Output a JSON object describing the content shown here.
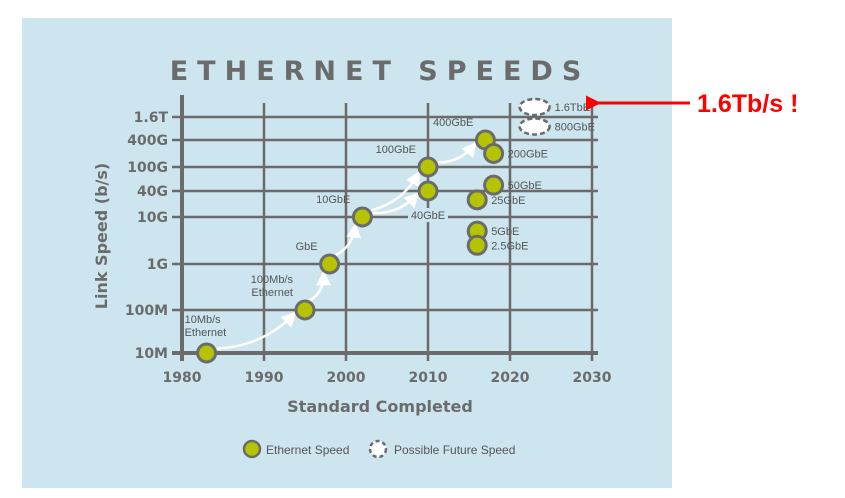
{
  "chart_data": {
    "type": "scatter",
    "title": "ETHERNET SPEEDS",
    "xlabel": "Standard Completed",
    "ylabel": "Link Speed (b/s)",
    "xlim": [
      1980,
      2030
    ],
    "x_ticks": [
      1980,
      1990,
      2000,
      2010,
      2020,
      2030
    ],
    "y_scale": "log",
    "y_unit": "Gb/s",
    "y_ticks": [
      {
        "value": 0.01,
        "label": "10M"
      },
      {
        "value": 0.1,
        "label": "100M"
      },
      {
        "value": 1,
        "label": "1G"
      },
      {
        "value": 10,
        "label": "10G"
      },
      {
        "value": 40,
        "label": "40G"
      },
      {
        "value": 100,
        "label": "100G"
      },
      {
        "value": 400,
        "label": "400G"
      },
      {
        "value": 1600,
        "label": "1.6T"
      }
    ],
    "grid": true,
    "series": [
      {
        "name": "Ethernet Speed",
        "color": "#b5c300",
        "points": [
          {
            "label": "10Mb/s\nEthernet",
            "x": 1983,
            "y": 0.01,
            "label_pos": "above"
          },
          {
            "label": "100Mb/s\nEthernet",
            "x": 1995,
            "y": 0.1,
            "label_pos": "above-left"
          },
          {
            "label": "GbE",
            "x": 1998,
            "y": 1,
            "label_pos": "above-left"
          },
          {
            "label": "10GbE",
            "x": 2002,
            "y": 10,
            "label_pos": "above-left"
          },
          {
            "label": "40GbE",
            "x": 2010,
            "y": 40,
            "label_pos": "below"
          },
          {
            "label": "100GbE",
            "x": 2010,
            "y": 100,
            "label_pos": "above-left"
          },
          {
            "label": "400GbE",
            "x": 2017,
            "y": 400,
            "label_pos": "above-left"
          },
          {
            "label": "200GbE",
            "x": 2018,
            "y": 200,
            "label_pos": "right"
          },
          {
            "label": "50GbE",
            "x": 2018,
            "y": 50,
            "label_pos": "right"
          },
          {
            "label": "25GbE",
            "x": 2016,
            "y": 25,
            "label_pos": "right"
          },
          {
            "label": "5GbE",
            "x": 2016,
            "y": 5,
            "label_pos": "right"
          },
          {
            "label": "2.5GbE",
            "x": 2016,
            "y": 2.5,
            "label_pos": "right"
          }
        ]
      },
      {
        "name": "Possible Future Speed",
        "style": "dashed-outline",
        "points": [
          {
            "label": "1.6TbE",
            "x": 2023,
            "y": 1600,
            "label_pos": "right"
          },
          {
            "label": "800GbE",
            "x": 2023,
            "y": 800,
            "label_pos": "right"
          }
        ]
      }
    ],
    "progression_arrows": [
      [
        "10Mb/s\nEthernet",
        "100Mb/s\nEthernet"
      ],
      [
        "100Mb/s\nEthernet",
        "GbE"
      ],
      [
        "GbE",
        "10GbE"
      ],
      [
        "10GbE",
        "100GbE"
      ],
      [
        "10GbE",
        "40GbE"
      ],
      [
        "100GbE",
        "400GbE"
      ]
    ],
    "legend": {
      "placement": "bottom",
      "entries": [
        "Ethernet Speed",
        "Possible Future Speed"
      ]
    },
    "annotation": {
      "text": "1.6Tb/s !",
      "color": "#ff0000",
      "points_to": "1.6TbE"
    }
  }
}
